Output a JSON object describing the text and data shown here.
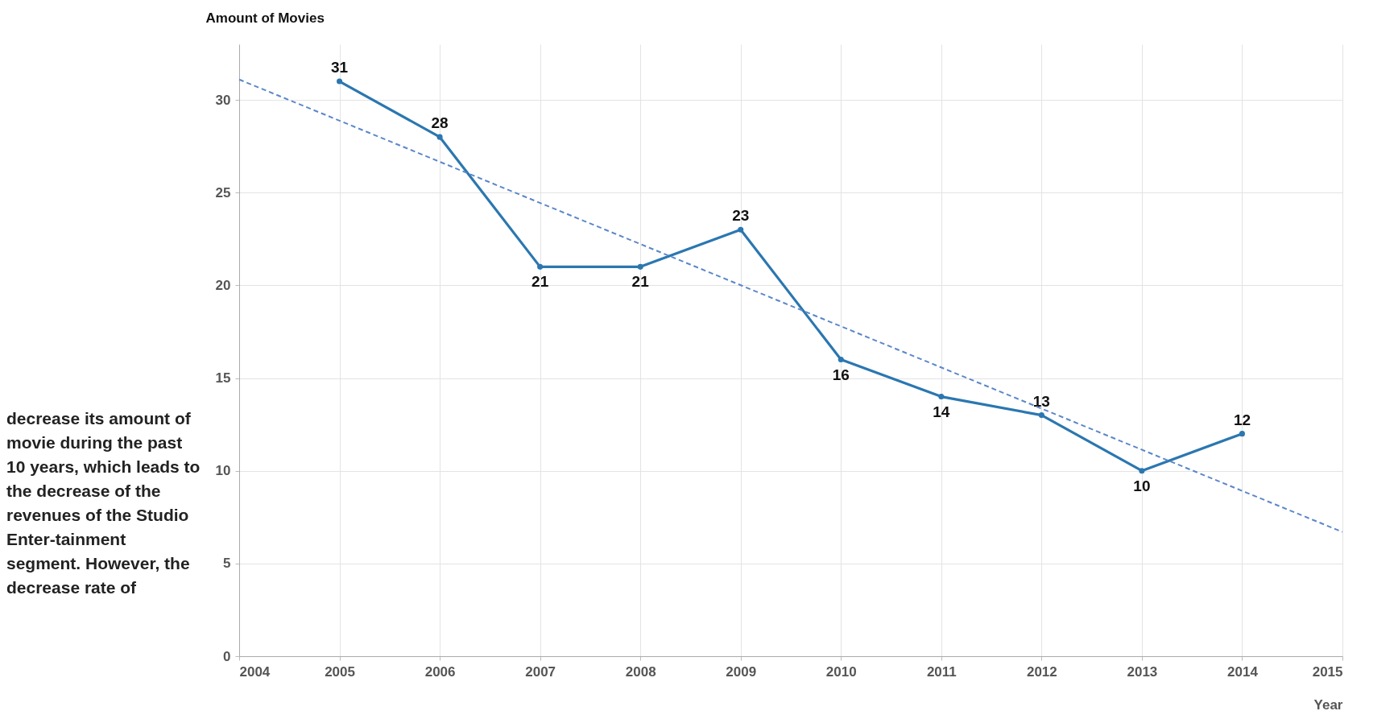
{
  "chart_data": {
    "type": "line",
    "xlabel": "Year",
    "ylabel": "Amount of Movies",
    "x": [
      2005,
      2006,
      2007,
      2008,
      2009,
      2010,
      2011,
      2012,
      2013,
      2014
    ],
    "series": [
      {
        "color": "#2b77b0",
        "values": [
          31,
          28,
          21,
          21,
          23,
          16,
          14,
          13,
          10,
          12
        ],
        "marker": "circle",
        "line_style": "solid"
      },
      {
        "type": "line",
        "color": "#5b87c9",
        "x": [
          2004,
          2015
        ],
        "values": [
          31.1,
          6.7
        ],
        "marker": "none",
        "line_style": "dashed",
        "data_labels": false
      }
    ],
    "data_labels": true,
    "xlim": [
      2004,
      2015
    ],
    "xticks": [
      2004,
      2005,
      2006,
      2007,
      2008,
      2009,
      2010,
      2011,
      2012,
      2013,
      2014,
      2015
    ],
    "ylim": [
      0,
      33
    ],
    "yticks": [
      0,
      5,
      10,
      15,
      20,
      25,
      30
    ],
    "grid": true,
    "annotations": [
      "decrease its amount of movie during the past 10 years, which leads to the decrease of the revenues of the Studio Enter-tainment segment. However, the decrease rate of"
    ]
  }
}
